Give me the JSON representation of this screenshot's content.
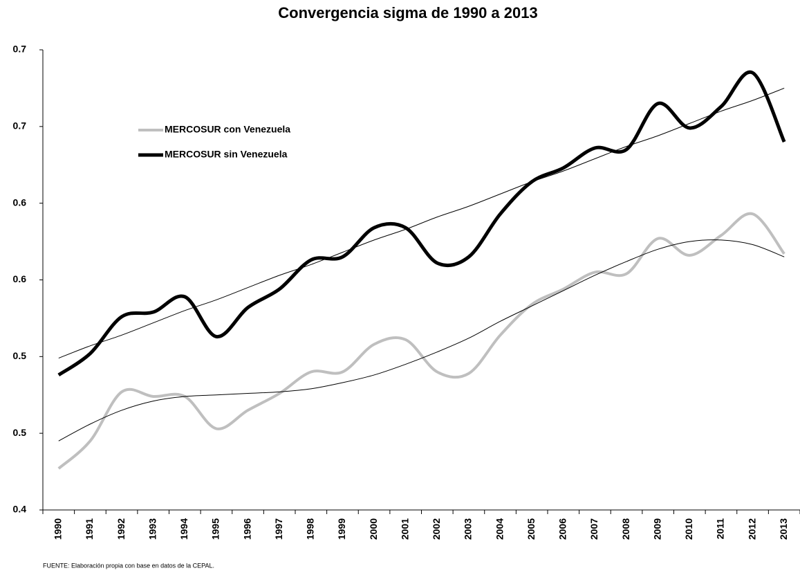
{
  "chart_data": {
    "type": "line",
    "title": "Convergencia sigma de 1990 a 2013",
    "source": "FUENTE: Elaboración propia con base en datos de la CEPAL.",
    "categories": [
      "1990",
      "1991",
      "1992",
      "1993",
      "1994",
      "1995",
      "1996",
      "1997",
      "1998",
      "1999",
      "2000",
      "2001",
      "2002",
      "2003",
      "2004",
      "2005",
      "2006",
      "2007",
      "2008",
      "2009",
      "2010",
      "2011",
      "2012",
      "2013"
    ],
    "series": [
      {
        "name": "MERCOSUR con Venezuela",
        "color": "#bfbfbf",
        "values": [
          0.427,
          0.445,
          0.477,
          0.474,
          0.474,
          0.453,
          0.465,
          0.476,
          0.49,
          0.49,
          0.508,
          0.511,
          0.49,
          0.489,
          0.514,
          0.534,
          0.544,
          0.555,
          0.554,
          0.577,
          0.566,
          0.579,
          0.593,
          0.567
        ]
      },
      {
        "name": "MERCOSUR sin Venezuela",
        "color": "#000000",
        "values": [
          0.488,
          0.502,
          0.526,
          0.529,
          0.539,
          0.513,
          0.532,
          0.544,
          0.563,
          0.565,
          0.584,
          0.584,
          0.561,
          0.565,
          0.593,
          0.614,
          0.623,
          0.636,
          0.635,
          0.665,
          0.649,
          0.663,
          0.685,
          0.64
        ]
      }
    ],
    "trendlines": [
      {
        "color": "#000000",
        "values": [
          0.445,
          0.456,
          0.465,
          0.471,
          0.474,
          0.475,
          0.476,
          0.477,
          0.479,
          0.483,
          0.488,
          0.495,
          0.503,
          0.512,
          0.523,
          0.533,
          0.543,
          0.553,
          0.562,
          0.57,
          0.575,
          0.576,
          0.573,
          0.565
        ]
      },
      {
        "color": "#000000",
        "values": [
          0.499,
          0.507,
          0.514,
          0.522,
          0.53,
          0.537,
          0.545,
          0.553,
          0.56,
          0.568,
          0.576,
          0.583,
          0.591,
          0.598,
          0.606,
          0.614,
          0.621,
          0.629,
          0.637,
          0.644,
          0.652,
          0.66,
          0.667,
          0.675
        ]
      }
    ],
    "ylim": [
      0.4,
      0.7
    ],
    "yticks": [
      0.4,
      {
        "value": 0.45,
        "label": "0.5"
      },
      0.5,
      {
        "value": 0.55,
        "label": "0.6"
      },
      0.6,
      {
        "value": 0.65,
        "label": "0.7"
      },
      0.7
    ]
  }
}
